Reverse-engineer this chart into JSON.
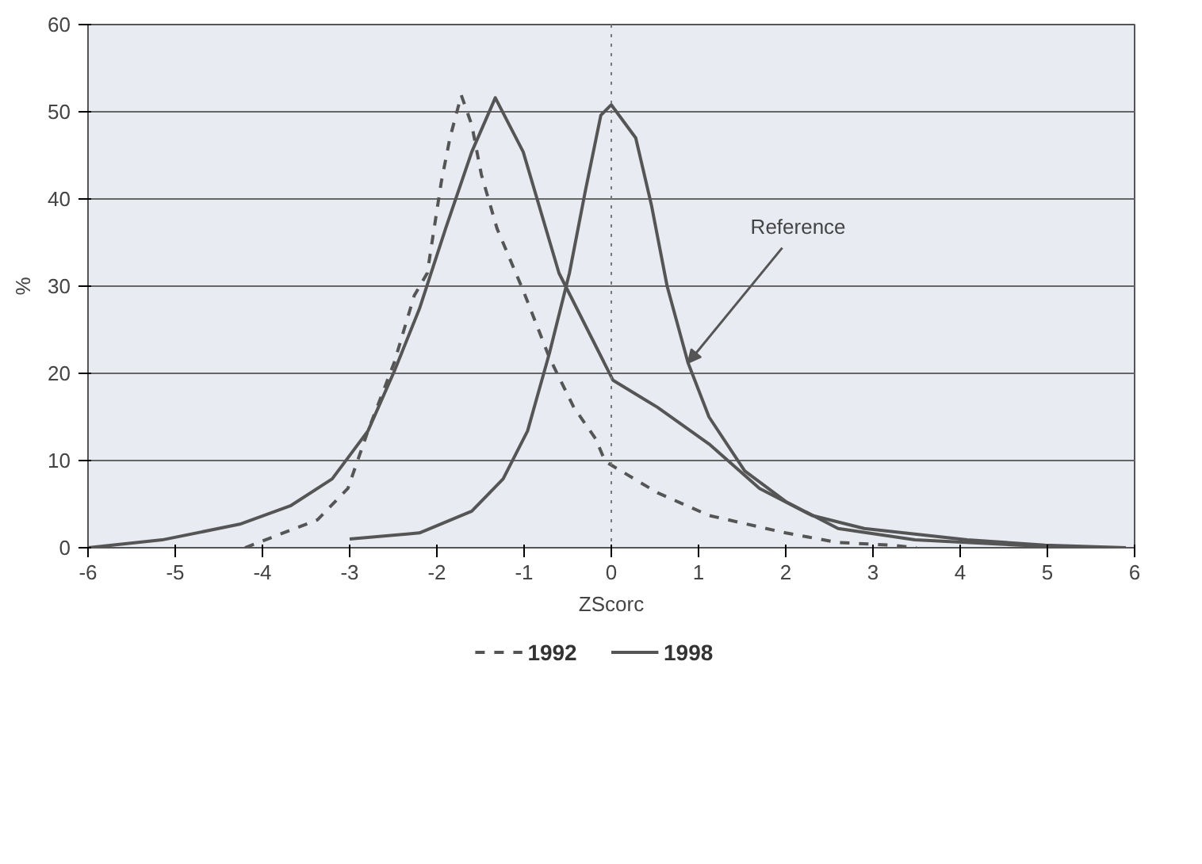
{
  "chart_data": {
    "type": "line",
    "xlabel": "ZScorc",
    "ylabel": "%",
    "xlim": [
      -6,
      6
    ],
    "xticks": [
      -6,
      -5,
      -4,
      -3,
      -2,
      -1,
      0,
      1,
      2,
      3,
      4,
      5,
      6
    ],
    "ylim": [
      0,
      60
    ],
    "yticks": [
      0,
      10,
      20,
      30,
      40,
      50,
      60
    ],
    "grid": "y",
    "legend": "bottom",
    "marker": "none",
    "ref_lines": [
      {
        "axis": "x",
        "value": 0,
        "line_style": "dotted",
        "color": "#777777"
      }
    ],
    "annotations": [
      {
        "text": "Reference",
        "x": 0.88,
        "y": 21.2
      }
    ],
    "series": [
      {
        "name": "1992",
        "color": "#555555",
        "line_style": "dashed",
        "x": [
          -4.2,
          -3.37,
          -3.02,
          -2.79,
          -2.49,
          -2.26,
          -2.11,
          -1.95,
          -1.85,
          -1.72,
          -1.6,
          -1.49,
          -1.31,
          -1.01,
          -0.71,
          -0.43,
          -0.18,
          -0.07,
          0.53,
          1.12,
          2.0,
          2.6,
          3.2,
          3.5
        ],
        "values": [
          0,
          3.2,
          6.8,
          13.4,
          21.2,
          28.9,
          31.5,
          41.9,
          47,
          51.9,
          48.5,
          42.8,
          36.6,
          29.5,
          21.8,
          16.1,
          12.5,
          9.9,
          6.3,
          3.7,
          1.7,
          0.6,
          0.3,
          0
        ]
      },
      {
        "name": "1998",
        "color": "#555555",
        "line_style": "solid",
        "x": [
          -6,
          -5.15,
          -4.26,
          -3.68,
          -3.2,
          -2.79,
          -2.49,
          -2.2,
          -1.9,
          -1.6,
          -1.33,
          -1.01,
          -0.6,
          0.02,
          0.53,
          1.12,
          1.7,
          2.3,
          2.9,
          4.08,
          4.97,
          5.9
        ],
        "values": [
          0,
          0.9,
          2.7,
          4.8,
          7.9,
          13.4,
          20.2,
          27.4,
          36.6,
          45.4,
          51.6,
          45.4,
          31.5,
          19.2,
          16.1,
          11.9,
          6.8,
          3.7,
          2.2,
          0.9,
          0.3,
          0
        ]
      },
      {
        "color": "#555555",
        "line_style": "solid",
        "x": [
          -3.0,
          -2.2,
          -1.6,
          -1.24,
          -0.96,
          -0.71,
          -0.48,
          -0.3,
          -0.12,
          0,
          0.28,
          0.46,
          0.64,
          0.88,
          1.12,
          1.53,
          2.0,
          2.6,
          3.48,
          4.67,
          5.0
        ],
        "values": [
          1.0,
          1.7,
          4.2,
          7.9,
          13.4,
          22.3,
          31.5,
          40.8,
          49.6,
          50.8,
          47,
          39.3,
          30,
          21.2,
          15,
          8.8,
          5.3,
          2.2,
          0.9,
          0.3,
          0.2
        ]
      }
    ]
  }
}
